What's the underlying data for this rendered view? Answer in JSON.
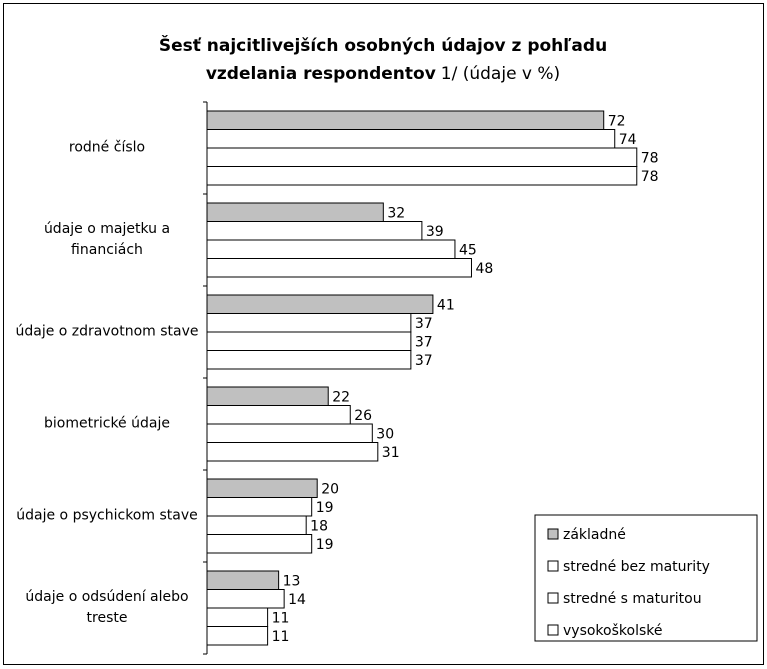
{
  "chart_data": {
    "type": "bar",
    "orientation": "horizontal",
    "title": "Šesť najcitlivejších osobných údajov z pohľadu",
    "title_line2": "vzdelania respondentov",
    "subtitle": "1/ (údaje v %)",
    "categories": [
      "rodné číslo",
      "údaje o majetku a financiách",
      "údaje o zdravotnom stave",
      "biometrické údaje",
      "údaje o psychickom stave",
      "údaje o odsúdení alebo treste"
    ],
    "series": [
      {
        "name": "základné",
        "color": "#c0c0c0",
        "values": [
          72,
          32,
          41,
          22,
          20,
          13
        ]
      },
      {
        "name": "stredné bez maturity",
        "color": "#ffffff",
        "values": [
          74,
          39,
          37,
          26,
          19,
          14
        ]
      },
      {
        "name": "stredné s maturitou",
        "color": "#ffffff",
        "values": [
          78,
          45,
          37,
          30,
          18,
          11
        ]
      },
      {
        "name": "vysokoškolské",
        "color": "#ffffff",
        "values": [
          78,
          48,
          37,
          31,
          19,
          11
        ]
      }
    ],
    "legend": "bottom-right"
  }
}
